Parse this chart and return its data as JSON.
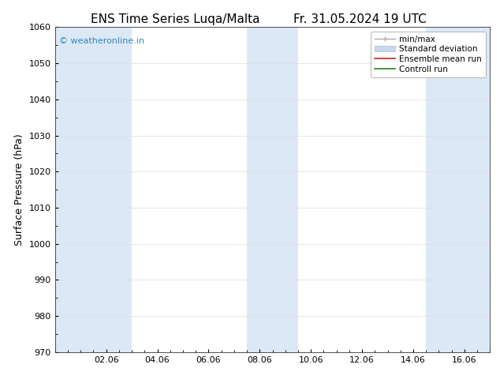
{
  "title_left": "ENS Time Series Luqa/Malta",
  "title_right": "Fr. 31.05.2024 19 UTC",
  "ylabel": "Surface Pressure (hPa)",
  "ylim": [
    970,
    1060
  ],
  "yticks": [
    970,
    980,
    990,
    1000,
    1010,
    1020,
    1030,
    1040,
    1050,
    1060
  ],
  "xtick_labels": [
    "02.06",
    "04.06",
    "06.06",
    "08.06",
    "10.06",
    "12.06",
    "14.06",
    "16.06"
  ],
  "xtick_positions": [
    2,
    4,
    6,
    8,
    10,
    12,
    14,
    16
  ],
  "xlim": [
    0,
    17
  ],
  "watermark": "© weatheronline.in",
  "watermark_color": "#3388bb",
  "bg_color": "#ffffff",
  "plot_bg_color": "#ffffff",
  "shaded_bands": [
    {
      "xstart": 0.0,
      "xend": 1.5,
      "color": "#dce8f5"
    },
    {
      "xstart": 1.5,
      "xend": 3.0,
      "color": "#dce8f5"
    },
    {
      "xstart": 7.5,
      "xend": 9.5,
      "color": "#dce8f5"
    },
    {
      "xstart": 14.5,
      "xend": 17.0,
      "color": "#dce8f5"
    }
  ],
  "legend_entries": [
    {
      "label": "min/max",
      "color": "#aaaaaa"
    },
    {
      "label": "Standard deviation",
      "color": "#c5d8ec"
    },
    {
      "label": "Ensemble mean run",
      "color": "#cc2222"
    },
    {
      "label": "Controll run",
      "color": "#228822"
    }
  ],
  "title_fontsize": 11,
  "axis_label_fontsize": 9,
  "tick_fontsize": 8,
  "legend_fontsize": 7.5
}
